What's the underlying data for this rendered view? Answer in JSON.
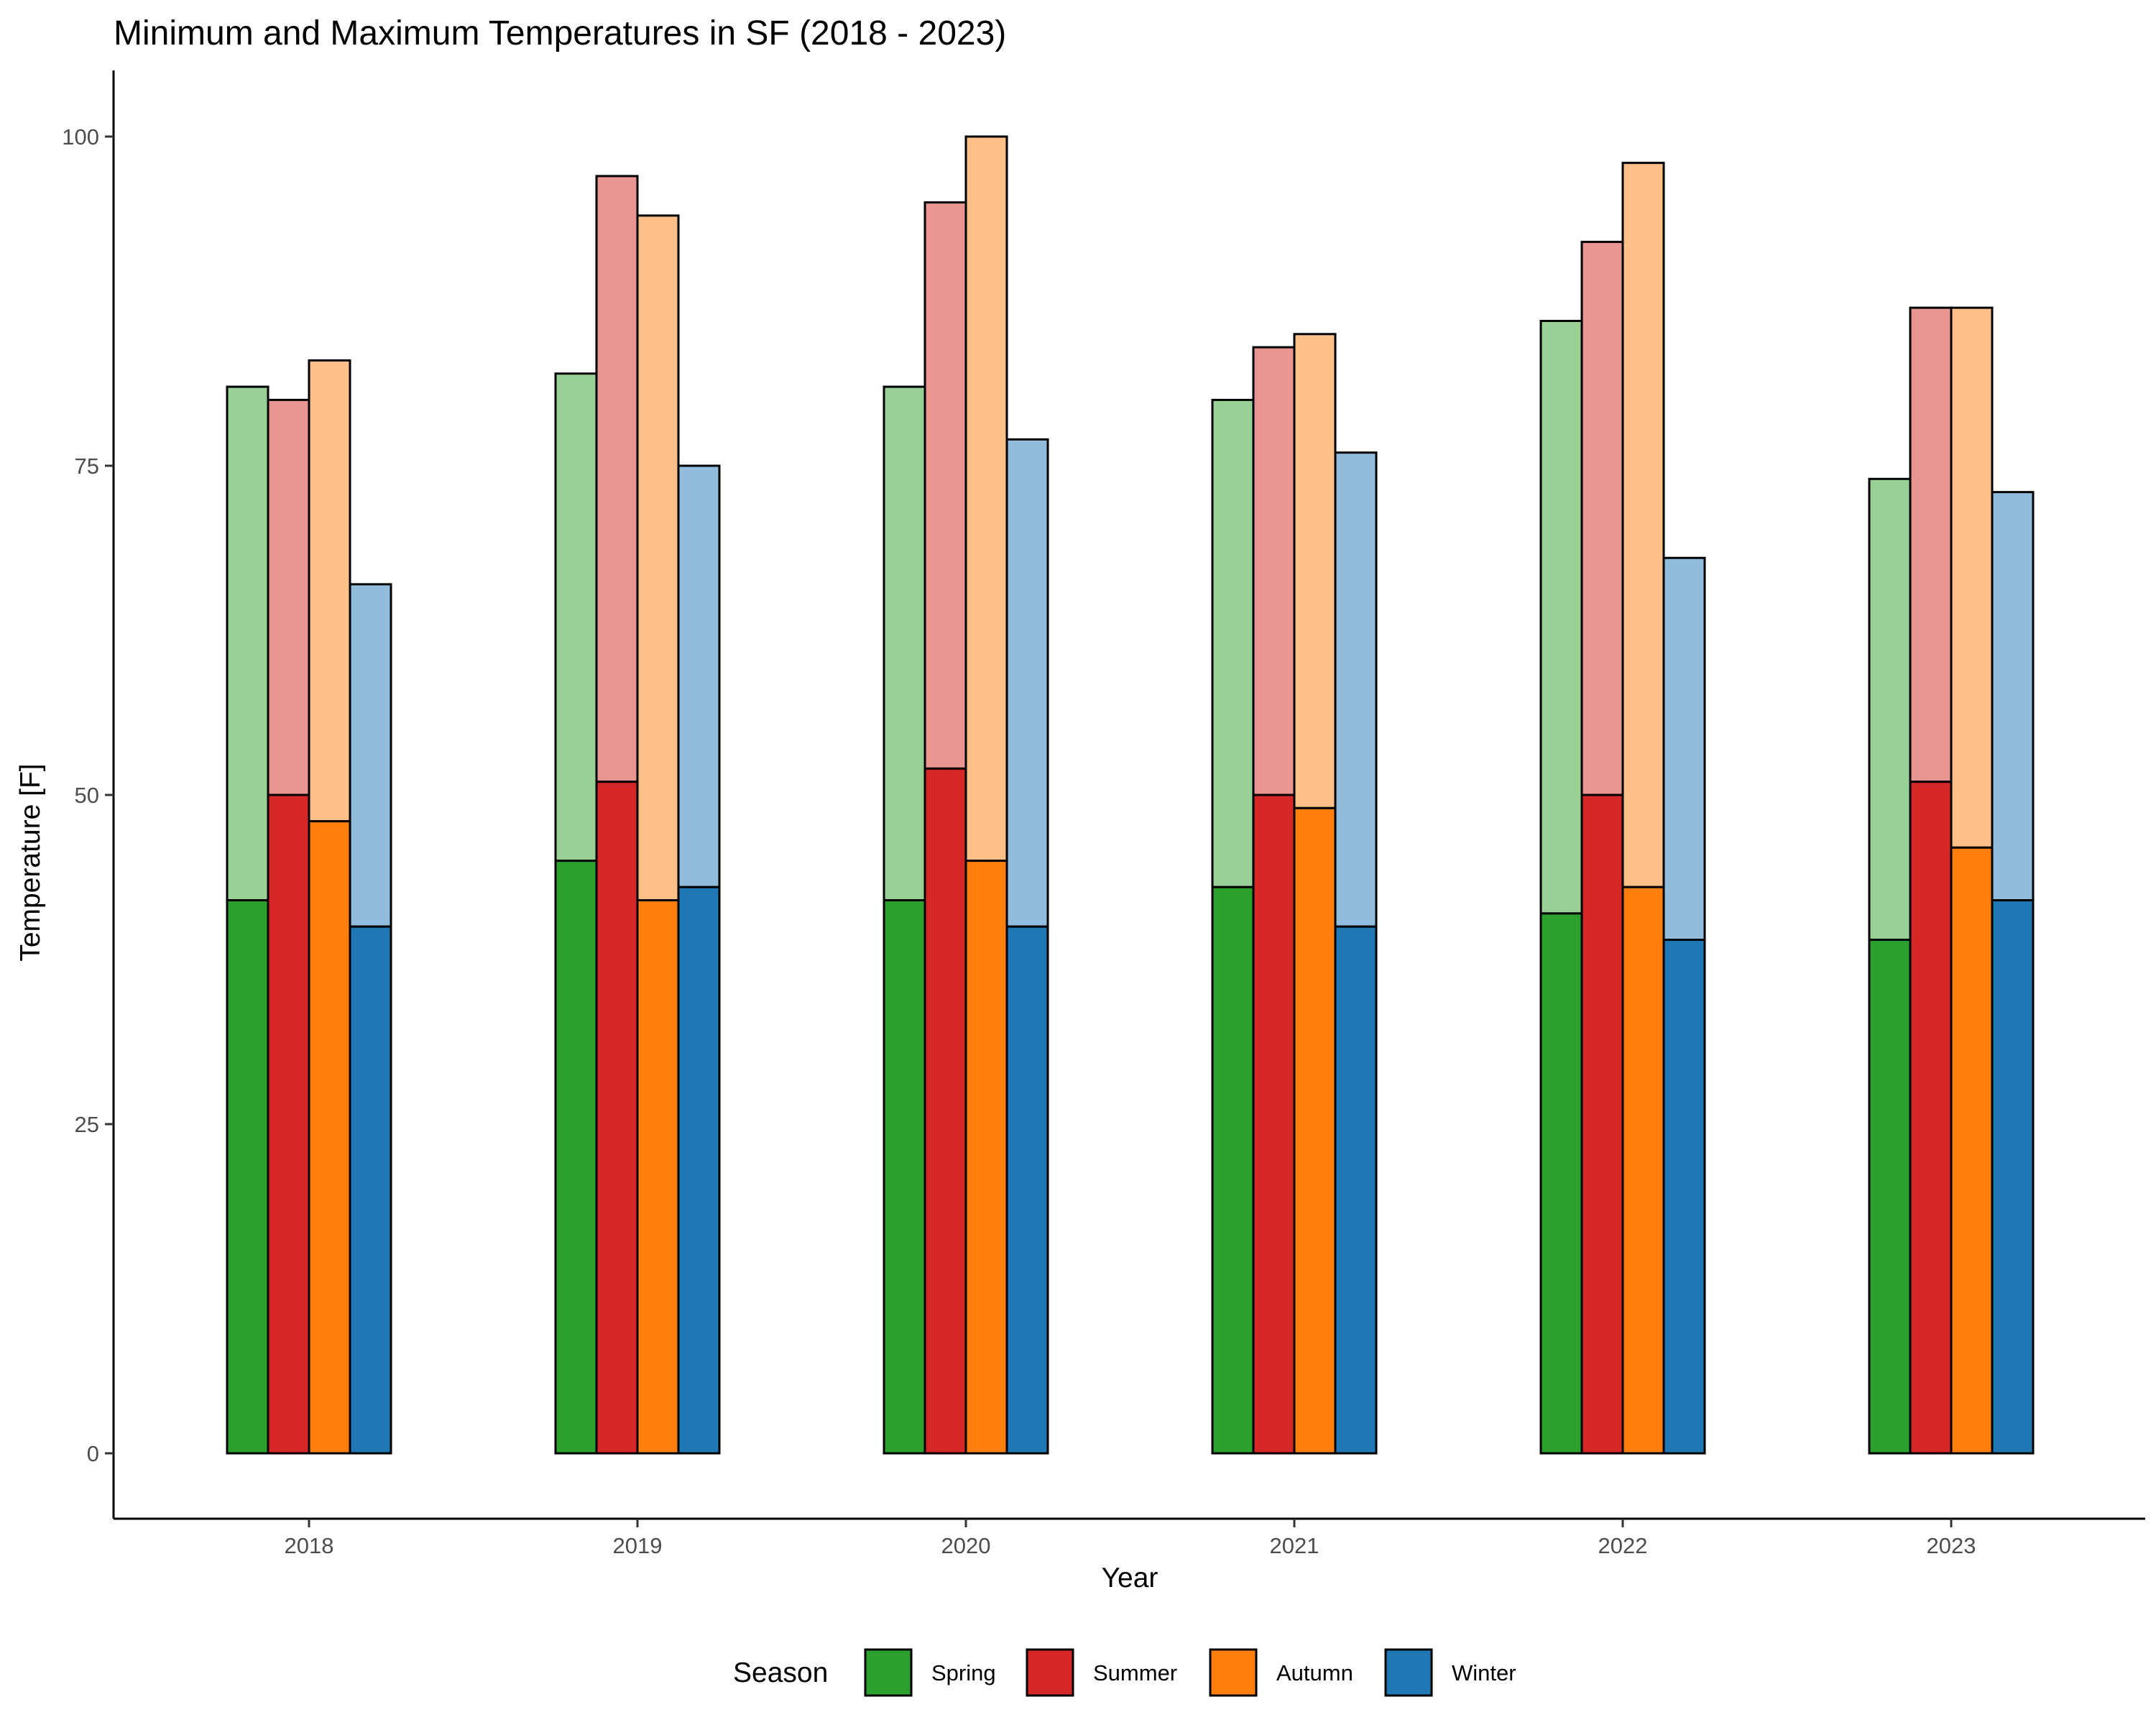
{
  "chart_data": {
    "type": "bar",
    "title": "Minimum and Maximum Temperatures in SF (2018 - 2023)",
    "xlabel": "Year",
    "ylabel": "Temperature [F]",
    "ylim": [
      0,
      100
    ],
    "yticks": [
      0,
      25,
      50,
      75,
      100
    ],
    "categories": [
      "2018",
      "2019",
      "2020",
      "2021",
      "2022",
      "2023"
    ],
    "legend_title": "Season",
    "legend_position": "bottom",
    "series": [
      {
        "name": "Spring",
        "color": "#2ca02c",
        "light_color": "#98d095",
        "min": [
          42,
          45,
          42,
          43,
          41,
          39
        ],
        "max": [
          81,
          82,
          81,
          80,
          86,
          74
        ]
      },
      {
        "name": "Summer",
        "color": "#d62728",
        "light_color": "#e99592",
        "min": [
          50,
          51,
          52,
          50,
          50,
          51
        ],
        "max": [
          80,
          97,
          95,
          84,
          92,
          87
        ]
      },
      {
        "name": "Autumn",
        "color": "#ff7f0e",
        "light_color": "#ffc087",
        "min": [
          48,
          42,
          45,
          49,
          43,
          46
        ],
        "max": [
          83,
          94,
          100,
          85,
          98,
          87
        ]
      },
      {
        "name": "Winter",
        "color": "#1f77b4",
        "light_color": "#91bcdb",
        "min": [
          40,
          43,
          40,
          40,
          39,
          42
        ],
        "max": [
          66,
          75,
          77,
          76,
          68,
          73
        ]
      }
    ]
  }
}
